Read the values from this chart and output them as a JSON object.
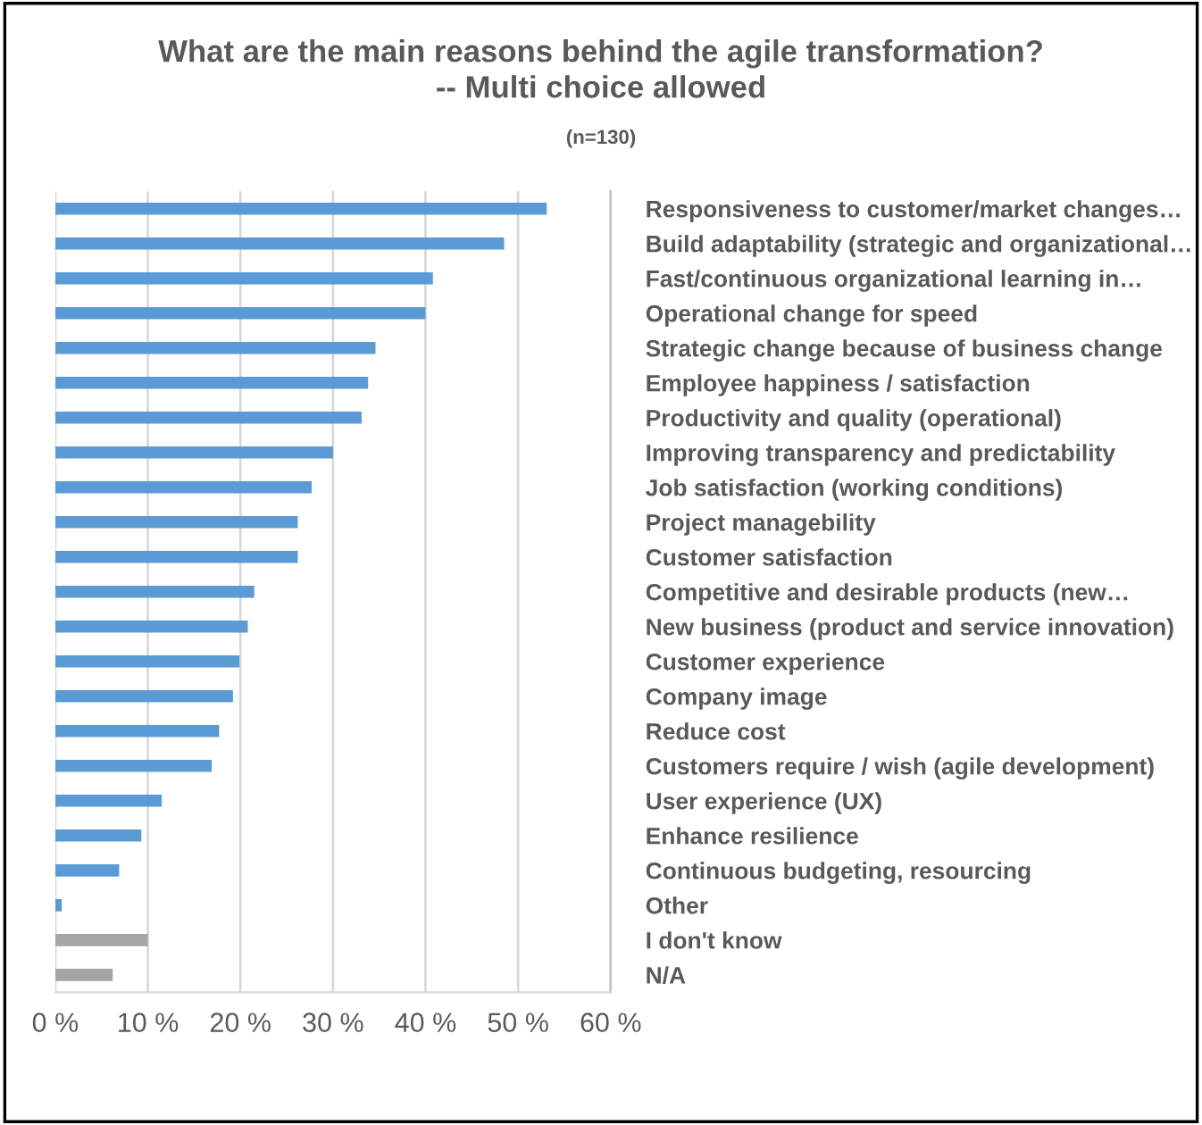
{
  "chart_data": {
    "type": "bar",
    "orientation": "horizontal",
    "title": "What are the main reasons behind the agile transformation?\n-- Multi choice allowed",
    "subtitle": "(n=130)",
    "categories": [
      "Responsiveness to customer/market changes…",
      "Build adaptability (strategic and organizational…",
      "Fast/continuous organizational learning in…",
      "Operational change for speed",
      "Strategic change because of business change",
      "Employee happiness / satisfaction",
      "Productivity and quality (operational)",
      "Improving transparency and predictability",
      "Job satisfaction (working conditions)",
      "Project managebility",
      "Customer satisfaction",
      "Competitive and desirable products (new…",
      "New business (product and service innovation)",
      "Customer experience",
      "Company image",
      "Reduce cost",
      "Customers require / wish (agile development)",
      "User experience (UX)",
      "Enhance resilience",
      "Continuous budgeting, resourcing",
      "Other",
      "I don't know",
      "N/A"
    ],
    "values": [
      53.1,
      48.5,
      40.8,
      40.0,
      34.6,
      33.8,
      33.1,
      30.0,
      27.7,
      26.2,
      26.2,
      21.5,
      20.8,
      19.9,
      19.2,
      17.7,
      16.9,
      11.5,
      9.3,
      6.9,
      0.7,
      10.0,
      6.2
    ],
    "colors": [
      "#5b9bd5",
      "#5b9bd5",
      "#5b9bd5",
      "#5b9bd5",
      "#5b9bd5",
      "#5b9bd5",
      "#5b9bd5",
      "#5b9bd5",
      "#5b9bd5",
      "#5b9bd5",
      "#5b9bd5",
      "#5b9bd5",
      "#5b9bd5",
      "#5b9bd5",
      "#5b9bd5",
      "#5b9bd5",
      "#5b9bd5",
      "#5b9bd5",
      "#5b9bd5",
      "#5b9bd5",
      "#5b9bd5",
      "#a5a5a5",
      "#a5a5a5"
    ],
    "xlim": [
      0,
      60
    ],
    "xticks": [
      {
        "value": 0,
        "label": "0 %"
      },
      {
        "value": 10,
        "label": "10 %"
      },
      {
        "value": 20,
        "label": "20 %"
      },
      {
        "value": 30,
        "label": "30 %"
      },
      {
        "value": 40,
        "label": "40 %"
      },
      {
        "value": 50,
        "label": "50 %"
      },
      {
        "value": 60,
        "label": "60 %"
      }
    ],
    "grid": "x",
    "legend": false
  }
}
